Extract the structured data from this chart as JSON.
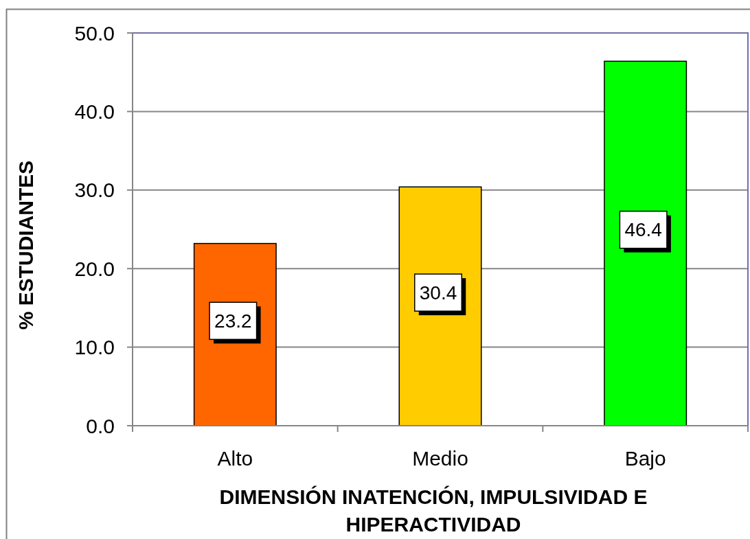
{
  "chart_data": {
    "type": "bar",
    "categories": [
      "Alto",
      "Medio",
      "Bajo"
    ],
    "values": [
      23.2,
      30.4,
      46.4
    ],
    "colors": [
      "#ff6600",
      "#ffcc00",
      "#00ff00"
    ],
    "ylim": [
      0,
      50
    ],
    "yticks": [
      {
        "value": 0,
        "label": "0.0"
      },
      {
        "value": 10,
        "label": "10.0"
      },
      {
        "value": 20,
        "label": "20.0"
      },
      {
        "value": 30,
        "label": "30.0"
      },
      {
        "value": 40,
        "label": "40.0"
      },
      {
        "value": 50,
        "label": "50.0"
      }
    ],
    "grid": "y",
    "data_labels": true,
    "ylabel": "% ESTUDIANTES",
    "xlabel": "DIMENSIÓN INATENCIÓN, IMPULSIVIDAD E HIPERACTIVIDAD"
  }
}
